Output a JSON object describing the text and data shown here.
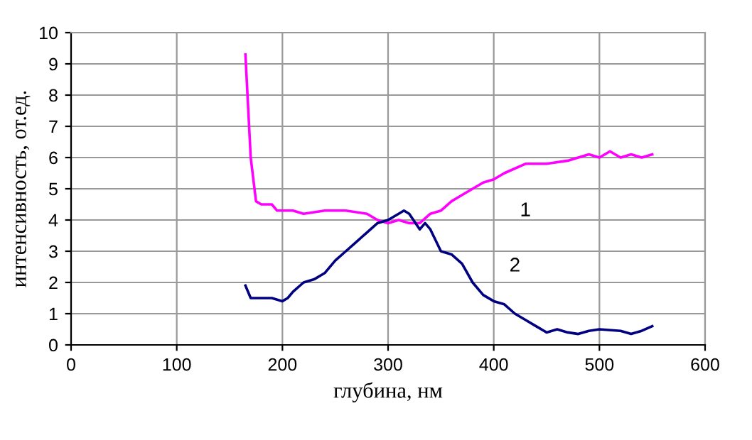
{
  "chart_data": {
    "type": "line",
    "xlabel": "глубина, нм",
    "ylabel": "интенсивность, от.ед.",
    "xlim": [
      0,
      600
    ],
    "xticks": [
      0,
      100,
      200,
      300,
      400,
      500,
      600
    ],
    "ylim": [
      0,
      10
    ],
    "yticks": [
      0,
      1,
      2,
      3,
      4,
      5,
      6,
      7,
      8,
      9,
      10
    ],
    "grid": true,
    "marker": "none",
    "line_style": "solid",
    "series": [
      {
        "name": "1",
        "color": "#ff00ff",
        "x": [
          165,
          170,
          175,
          180,
          190,
          195,
          210,
          220,
          240,
          260,
          280,
          290,
          300,
          310,
          320,
          330,
          340,
          350,
          360,
          370,
          390,
          400,
          410,
          430,
          440,
          450,
          470,
          490,
          500,
          510,
          520,
          530,
          540,
          550
        ],
        "values": [
          9.3,
          6.0,
          4.6,
          4.5,
          4.5,
          4.3,
          4.3,
          4.2,
          4.3,
          4.3,
          4.2,
          4.0,
          3.9,
          4.0,
          3.9,
          3.9,
          4.2,
          4.3,
          4.6,
          4.8,
          5.2,
          5.3,
          5.5,
          5.8,
          5.8,
          5.8,
          5.9,
          6.1,
          6.0,
          6.2,
          6.0,
          6.1,
          6.0,
          6.1
        ]
      },
      {
        "name": "2",
        "color": "#000080",
        "x": [
          165,
          170,
          180,
          190,
          200,
          205,
          210,
          220,
          230,
          240,
          250,
          260,
          270,
          280,
          290,
          300,
          310,
          315,
          320,
          330,
          335,
          340,
          350,
          360,
          370,
          380,
          390,
          400,
          410,
          420,
          430,
          440,
          450,
          460,
          470,
          480,
          490,
          500,
          520,
          530,
          540,
          550
        ],
        "values": [
          1.9,
          1.5,
          1.5,
          1.5,
          1.4,
          1.5,
          1.7,
          2.0,
          2.1,
          2.3,
          2.7,
          3.0,
          3.3,
          3.6,
          3.9,
          4.0,
          4.2,
          4.3,
          4.2,
          3.7,
          3.9,
          3.7,
          3.0,
          2.9,
          2.6,
          2.0,
          1.6,
          1.4,
          1.3,
          1.0,
          0.8,
          0.6,
          0.4,
          0.5,
          0.4,
          0.35,
          0.45,
          0.5,
          0.45,
          0.35,
          0.45,
          0.6
        ]
      }
    ]
  }
}
